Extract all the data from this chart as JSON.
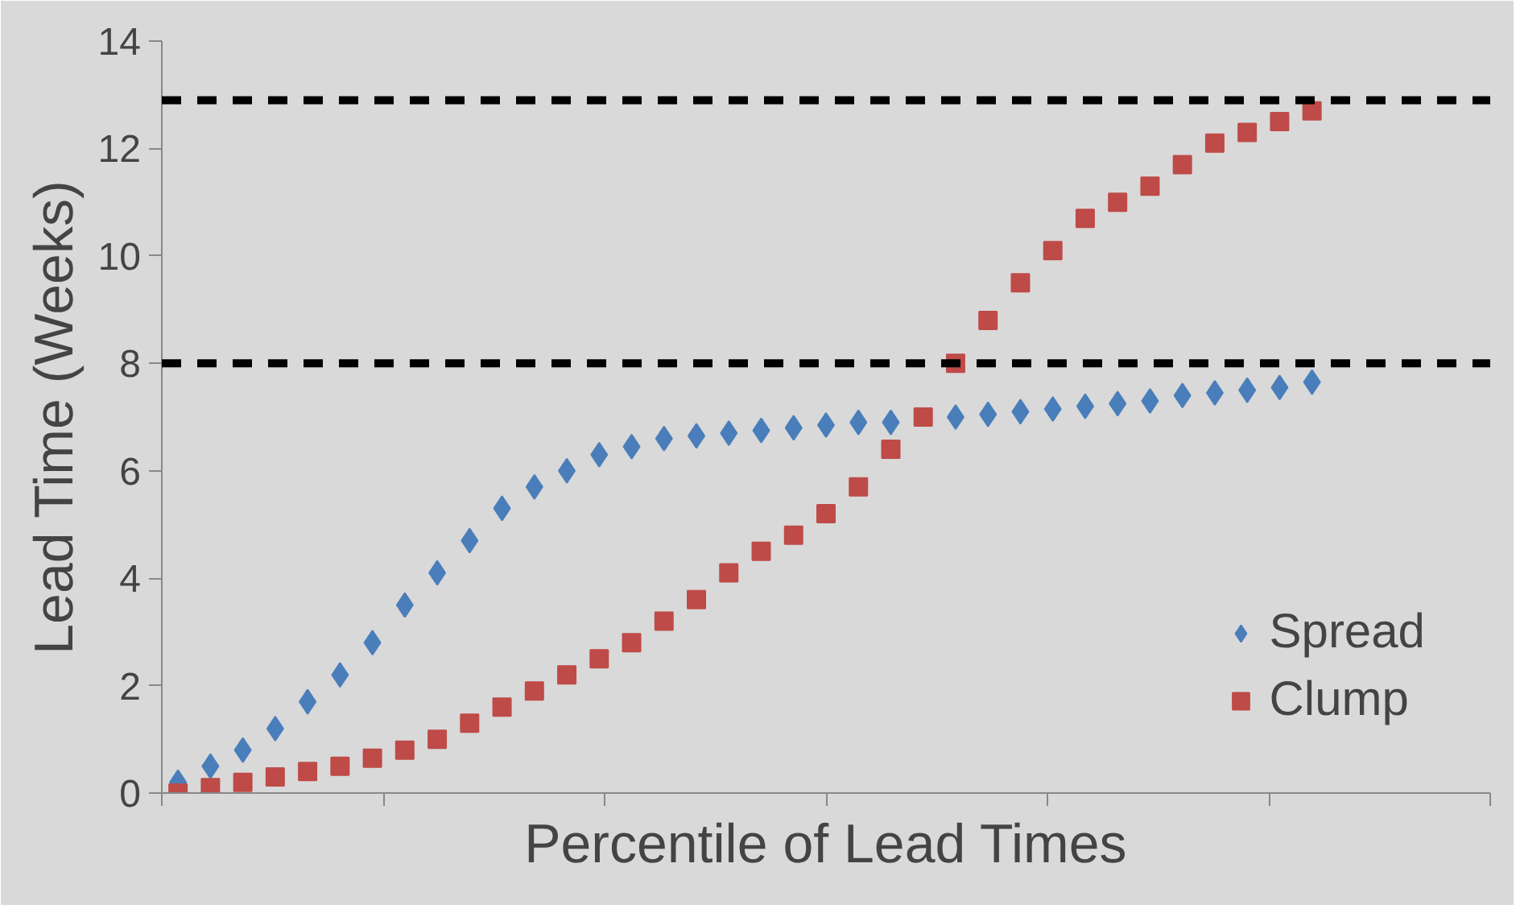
{
  "chart_data": {
    "type": "scatter",
    "xlabel": "Percentile of Lead Times",
    "ylabel": "Lead Time (Weeks)",
    "categories": [
      null,
      null,
      null,
      null,
      null,
      null,
      null,
      null,
      null,
      null,
      null,
      null,
      null,
      null,
      null,
      null,
      null,
      null,
      null,
      null,
      null,
      null,
      null,
      null,
      null,
      null,
      null,
      null,
      null,
      null,
      null,
      null,
      null,
      null,
      null,
      null,
      null,
      null,
      null,
      null,
      null
    ],
    "series": [
      {
        "name": "Spread",
        "color": "#4a7ebb",
        "marker": "diamond",
        "values": [
          0.2,
          0.5,
          0.8,
          1.2,
          1.7,
          2.2,
          2.8,
          3.5,
          4.1,
          4.7,
          5.3,
          5.7,
          6.0,
          6.3,
          6.45,
          6.6,
          6.65,
          6.7,
          6.75,
          6.8,
          6.85,
          6.9,
          6.9,
          null,
          7.0,
          7.05,
          7.1,
          7.15,
          7.2,
          7.25,
          7.3,
          7.4,
          7.45,
          7.5,
          7.55,
          7.65,
          null,
          null,
          null,
          null,
          null
        ]
      },
      {
        "name": "Clump",
        "color": "#be4b48",
        "marker": "square",
        "values": [
          0.0,
          0.1,
          0.2,
          0.3,
          0.4,
          0.5,
          0.65,
          0.8,
          1.0,
          1.3,
          1.6,
          1.9,
          2.2,
          2.5,
          2.8,
          3.2,
          3.6,
          4.1,
          4.5,
          4.8,
          5.2,
          5.7,
          6.4,
          7.0,
          8.0,
          8.8,
          9.5,
          10.1,
          10.7,
          11.0,
          11.3,
          11.7,
          12.1,
          12.3,
          12.5,
          12.7,
          null,
          null,
          null,
          null,
          null
        ]
      }
    ],
    "ylim": [
      0,
      14
    ],
    "yticks": [
      0,
      2,
      4,
      6,
      8,
      10,
      12,
      14
    ],
    "ref_lines": [
      {
        "axis": "y",
        "value": 8,
        "label": null,
        "color": "#000000",
        "line_style": "dashed"
      },
      {
        "axis": "y",
        "value": 12.9,
        "label": null,
        "color": "#000000",
        "line_style": "dashed"
      }
    ],
    "grid": false,
    "legend": "right",
    "tick_labels": "y"
  }
}
